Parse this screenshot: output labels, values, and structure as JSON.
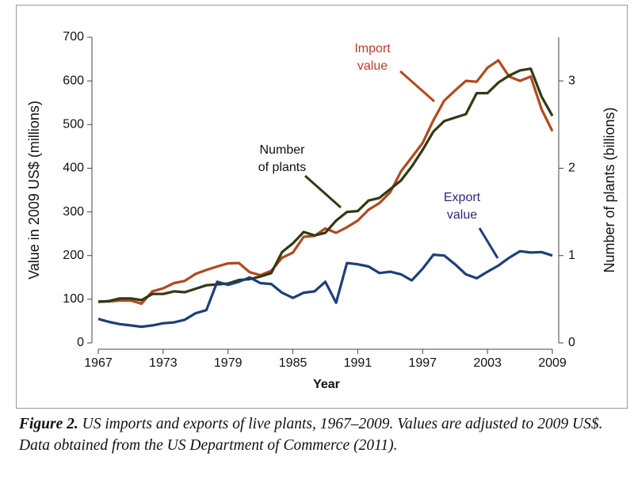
{
  "chart_data": {
    "type": "line",
    "xlabel": "Year",
    "ylabel": "Value in 2009 US$ (millions)",
    "y2label": "Number of plants (billions)",
    "x": [
      1967,
      1968,
      1969,
      1970,
      1971,
      1972,
      1973,
      1974,
      1975,
      1976,
      1977,
      1978,
      1979,
      1980,
      1981,
      1982,
      1983,
      1984,
      1985,
      1986,
      1987,
      1988,
      1989,
      1990,
      1991,
      1992,
      1993,
      1994,
      1995,
      1996,
      1997,
      1998,
      1999,
      2000,
      2001,
      2002,
      2003,
      2004,
      2005,
      2006,
      2007,
      2008,
      2009
    ],
    "xlim": [
      1967,
      2009
    ],
    "xticks": [
      1967,
      1973,
      1979,
      1985,
      1991,
      1997,
      2003,
      2009
    ],
    "ylim": [
      0,
      700
    ],
    "yticks": [
      0,
      100,
      200,
      300,
      400,
      500,
      600,
      700
    ],
    "y2lim": [
      0,
      3.5
    ],
    "y2ticks": [
      0,
      1,
      2,
      3
    ],
    "series": [
      {
        "name": "Import value",
        "color": "#b04a1e",
        "values": [
          95,
          95,
          97,
          97,
          90,
          118,
          125,
          137,
          142,
          158,
          167,
          175,
          182,
          183,
          162,
          155,
          165,
          195,
          207,
          243,
          245,
          262,
          252,
          265,
          280,
          305,
          320,
          345,
          393,
          425,
          458,
          510,
          555,
          578,
          600,
          598,
          630,
          647,
          610,
          600,
          610,
          535,
          485
        ]
      },
      {
        "name": "Number of plants",
        "color": "#2f3a14",
        "axis": "y2",
        "values": [
          0.47,
          0.48,
          0.51,
          0.51,
          0.49,
          0.56,
          0.56,
          0.59,
          0.58,
          0.62,
          0.66,
          0.67,
          0.68,
          0.72,
          0.73,
          0.76,
          0.8,
          1.04,
          1.14,
          1.27,
          1.23,
          1.26,
          1.4,
          1.5,
          1.51,
          1.63,
          1.66,
          1.76,
          1.86,
          2.02,
          2.21,
          2.42,
          2.54,
          2.58,
          2.62,
          2.86,
          2.86,
          2.98,
          3.06,
          3.12,
          3.14,
          2.82,
          2.6
        ]
      },
      {
        "name": "Export value",
        "color": "#1e3f78",
        "values": [
          55,
          48,
          43,
          40,
          37,
          40,
          45,
          47,
          53,
          68,
          75,
          140,
          133,
          140,
          150,
          137,
          135,
          115,
          103,
          115,
          118,
          140,
          92,
          183,
          180,
          175,
          160,
          163,
          157,
          143,
          170,
          202,
          200,
          180,
          157,
          148,
          163,
          177,
          195,
          210,
          207,
          208,
          200
        ]
      }
    ],
    "annotations": [
      {
        "lines": [
          "Import",
          "value"
        ]
      },
      {
        "lines": [
          "Number",
          "of plants"
        ]
      },
      {
        "lines": [
          "Export",
          "value"
        ]
      }
    ],
    "caption": {
      "label": "Figure 2.",
      "text": "US imports and exports of live plants, 1967–2009. Values are adjusted to 2009 US$. Data obtained from the US Department of Commerce (2011)."
    }
  }
}
